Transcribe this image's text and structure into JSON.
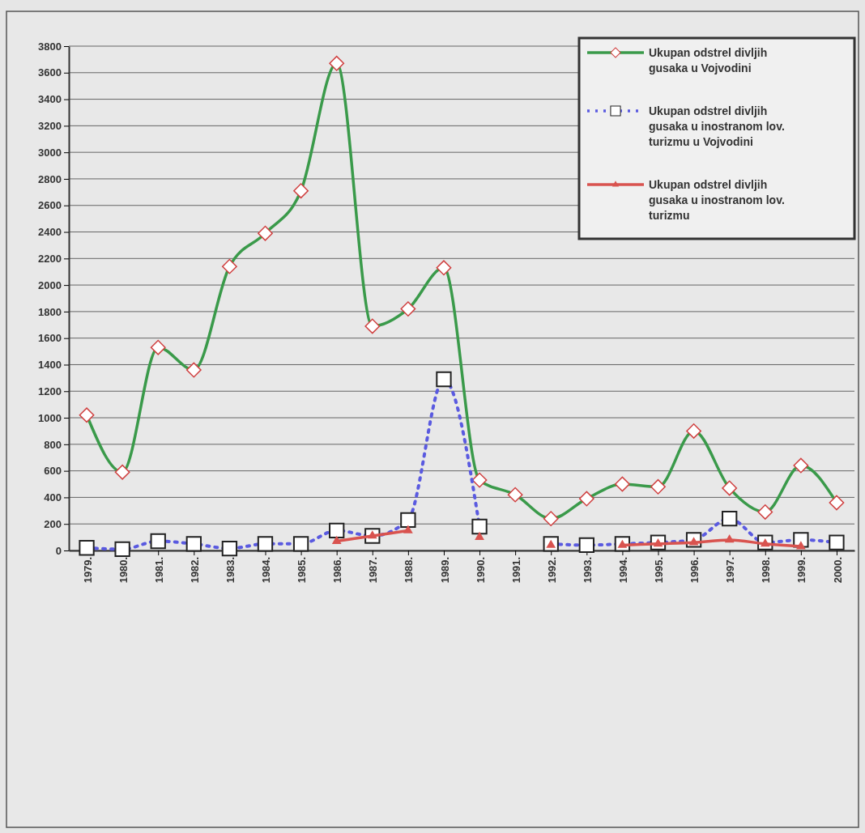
{
  "chart_data": {
    "type": "line",
    "categories": [
      "1979.",
      "1980.",
      "1981.",
      "1982.",
      "1983.",
      "1984.",
      "1985.",
      "1986.",
      "1987.",
      "1988.",
      "1989.",
      "1990.",
      "1991.",
      "1992.",
      "1993.",
      "1994.",
      "1995.",
      "1996.",
      "1997.",
      "1998.",
      "1999.",
      "2000."
    ],
    "series": [
      {
        "name": "Ukupan odstrel divljih gusaka u Vojvodini",
        "color": "#3a9a4a",
        "marker": "diamond",
        "line_style": "solid",
        "values": [
          1020,
          590,
          1530,
          1360,
          2140,
          2390,
          2710,
          3670,
          1690,
          1820,
          2130,
          530,
          420,
          240,
          390,
          500,
          480,
          900,
          470,
          290,
          640,
          360
        ]
      },
      {
        "name": "Ukupan odstrel divljih gusaka u inostranom lov. turizmu u Vojvodini",
        "color": "#5a5ae0",
        "marker": "square",
        "line_style": "dotted",
        "values": [
          20,
          10,
          70,
          50,
          15,
          50,
          50,
          150,
          110,
          230,
          1290,
          180,
          null,
          50,
          40,
          50,
          60,
          80,
          240,
          60,
          80,
          60
        ]
      },
      {
        "name": "Ukupan odstrel divljih gusaka u inostranom lov. turizmu",
        "color": "#d9534f",
        "marker": "triangle",
        "line_style": "solid",
        "values": [
          null,
          null,
          null,
          null,
          null,
          null,
          null,
          70,
          110,
          150,
          null,
          100,
          null,
          40,
          null,
          40,
          50,
          60,
          80,
          50,
          30,
          null
        ]
      }
    ],
    "ylim": [
      0,
      3800
    ],
    "yticks": [
      0,
      200,
      400,
      600,
      800,
      1000,
      1200,
      1400,
      1600,
      1800,
      2000,
      2200,
      2400,
      2600,
      2800,
      3000,
      3200,
      3400,
      3600,
      3800
    ],
    "grid": "y",
    "legend": "top right"
  }
}
